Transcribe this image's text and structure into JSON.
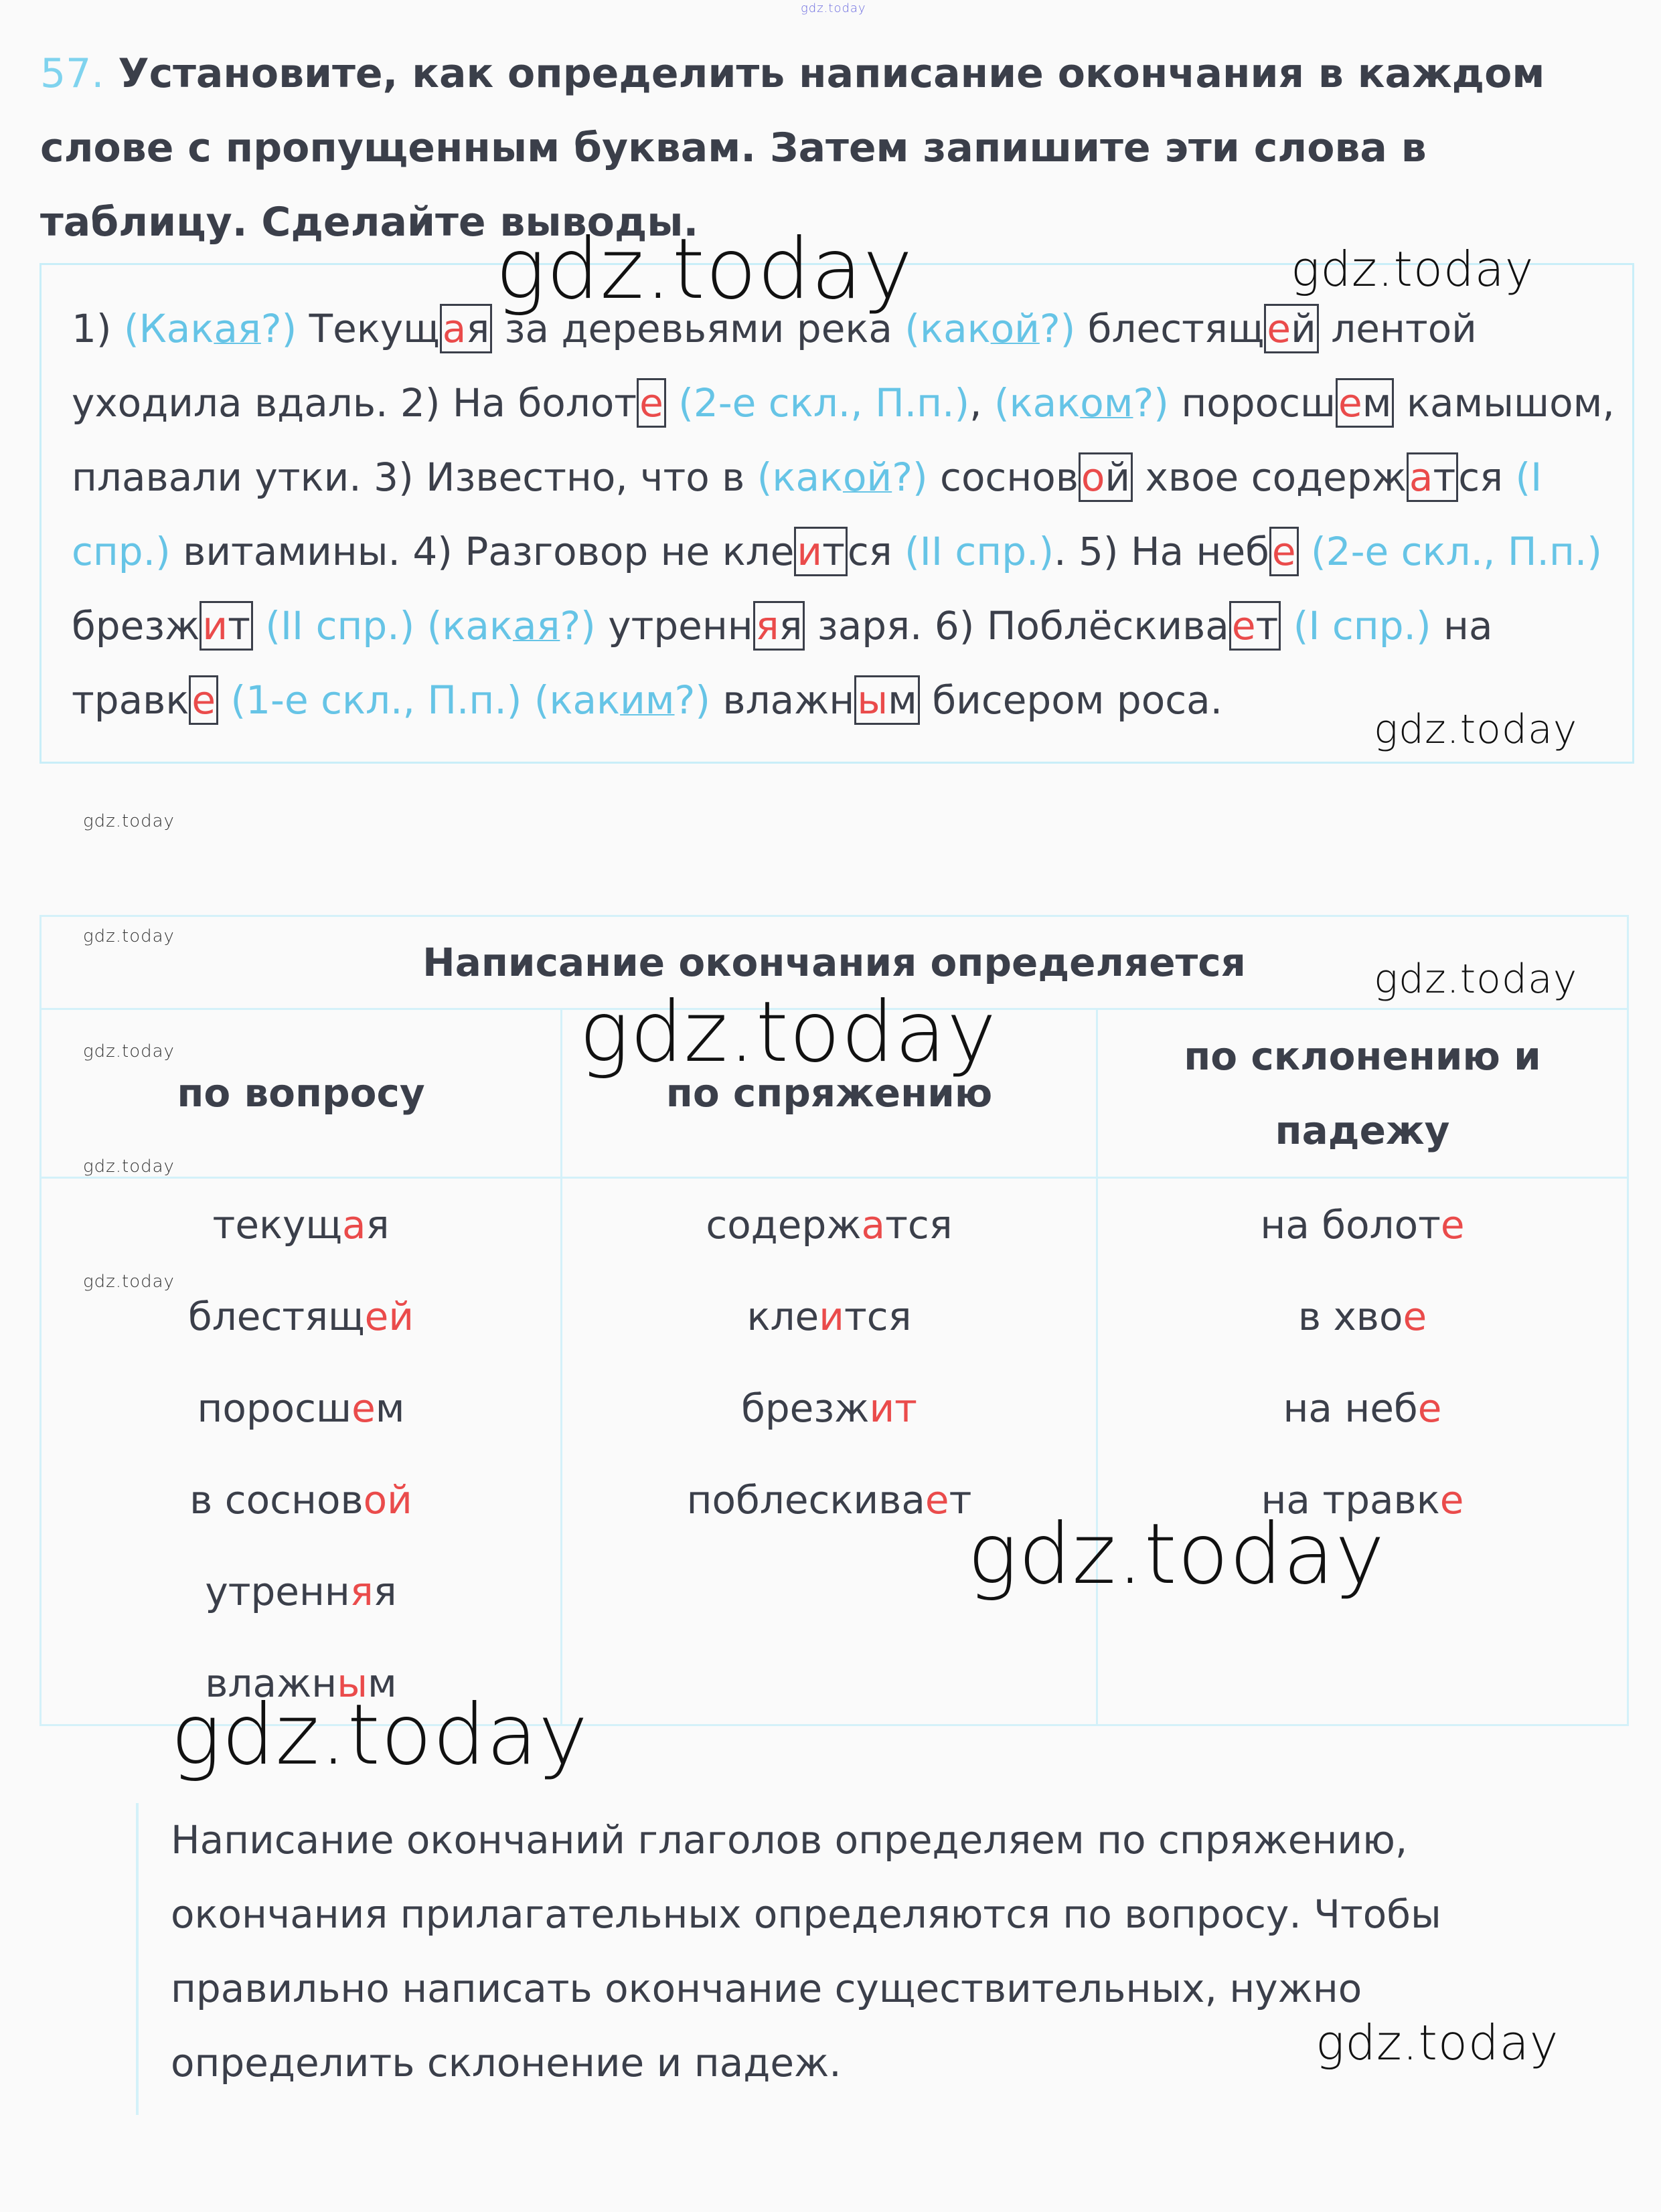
{
  "watermarks": {
    "top": "gdz.today",
    "big1": "gdz.today",
    "mid1": "gdz.today",
    "mid2": "gdz.today",
    "small1": "gdz.today",
    "small2": "gdz.today",
    "mid3": "gdz.today",
    "small3": "gdz.today",
    "small4": "gdz.today",
    "big2": "gdz.today",
    "big3": "gdz.today",
    "big4": "gdz.today",
    "small5": "gdz.today",
    "mid4": "gdz.today"
  },
  "colors": {
    "hint": "#66c4e6",
    "ending": "#ea4b4b",
    "text": "#3b3f4a",
    "border": "#d4f1f9"
  },
  "task": {
    "number": "57.",
    "text": "Установите, как определить написание окончания в каждом слове с пропущенным буквам. Затем запишите эти слова в таблицу. Сделайте выводы."
  },
  "paragraph": [
    {
      "t": "1) "
    },
    {
      "q": "(Как",
      "u": "ая",
      "q2": "?)"
    },
    {
      "t": " Текущ"
    },
    {
      "box": [
        {
          "r": "а"
        },
        {
          "t": "я"
        }
      ]
    },
    {
      "t": " за деревьями река "
    },
    {
      "q": "(как",
      "u": "ой",
      "q2": "?)"
    },
    {
      "t": " блестящ"
    },
    {
      "box": [
        {
          "r": "е"
        },
        {
          "t": "й"
        }
      ]
    },
    {
      "t": " лентой уходила вдаль. 2) На болот"
    },
    {
      "box": [
        {
          "r": "е"
        }
      ]
    },
    {
      "t": " "
    },
    {
      "q": "(2-е скл., П.п.)"
    },
    {
      "t": ", "
    },
    {
      "q": "(как",
      "u": "ом",
      "q2": "?)"
    },
    {
      "t": " поросш"
    },
    {
      "box": [
        {
          "r": "е"
        },
        {
          "t": "м"
        }
      ]
    },
    {
      "t": " камышом, плавали утки. 3) Известно, что в "
    },
    {
      "q": "(как",
      "u": "ой",
      "q2": "?)"
    },
    {
      "t": " соснов"
    },
    {
      "box": [
        {
          "r": "о"
        },
        {
          "t": "й"
        }
      ]
    },
    {
      "t": " хвое содерж"
    },
    {
      "box": [
        {
          "r": "а"
        },
        {
          "t": "т"
        }
      ]
    },
    {
      "t": "ся "
    },
    {
      "q": "(I спр.)"
    },
    {
      "t": " витамины. 4) Разговор не кле"
    },
    {
      "box": [
        {
          "r": "и"
        },
        {
          "t": "т"
        }
      ]
    },
    {
      "t": "ся "
    },
    {
      "q": "(II спр.)"
    },
    {
      "t": ". 5) На неб"
    },
    {
      "box": [
        {
          "r": "е"
        }
      ]
    },
    {
      "t": " "
    },
    {
      "q": "(2-е скл., П.п.)"
    },
    {
      "t": " брезж"
    },
    {
      "box": [
        {
          "r": "и"
        },
        {
          "t": "т"
        }
      ]
    },
    {
      "t": " "
    },
    {
      "q": "(II спр.)"
    },
    {
      "t": " "
    },
    {
      "q": "(как",
      "u": "ая",
      "q2": "?)"
    },
    {
      "t": " утренн"
    },
    {
      "box": [
        {
          "r": "я"
        },
        {
          "t": "я"
        }
      ]
    },
    {
      "t": " заря. 6) Поблёскива"
    },
    {
      "box": [
        {
          "r": "е"
        },
        {
          "t": "т"
        }
      ]
    },
    {
      "t": " "
    },
    {
      "q": "(I спр.)"
    },
    {
      "t": "  на травк"
    },
    {
      "box": [
        {
          "r": "е"
        }
      ]
    },
    {
      "t": " "
    },
    {
      "q": "(1-е скл., П.п.)"
    },
    {
      "t": "  "
    },
    {
      "q": "(как",
      "u": "им",
      "q2": "?)"
    },
    {
      "t": " влажн"
    },
    {
      "box": [
        {
          "r": "ы"
        },
        {
          "t": "м"
        }
      ]
    },
    {
      "t": " бисером роса."
    }
  ],
  "table": {
    "header": "Написание окончания определяется",
    "columns": [
      {
        "title": "по вопросу",
        "words": [
          {
            "s": "текущ",
            "e": "а",
            "r": "я"
          },
          {
            "s": "блестящ",
            "e": "ей",
            "r": ""
          },
          {
            "s": "поросш",
            "e": "е",
            "r": "м"
          },
          {
            "s": "в соснов",
            "e": "ой",
            "r": ""
          },
          {
            "s": "утренн",
            "e": "я",
            "r": "я"
          },
          {
            "s": "влажн",
            "e": "ы",
            "r": "м"
          }
        ]
      },
      {
        "title": "по спряжению",
        "words": [
          {
            "s": "содерж",
            "e": "а",
            "r": "тся"
          },
          {
            "s": "кле",
            "e": "и",
            "r": "тся"
          },
          {
            "s": "брезж",
            "e": "ит",
            "r": ""
          },
          {
            "s": "поблескива",
            "e": "е",
            "r": "т"
          }
        ]
      },
      {
        "title": "по склонению и падежу",
        "words": [
          {
            "s": "на болот",
            "e": "е",
            "r": ""
          },
          {
            "s": "в хво",
            "e": "е",
            "r": ""
          },
          {
            "s": "на неб",
            "e": "е",
            "r": ""
          },
          {
            "s": "на травк",
            "e": "е",
            "r": ""
          }
        ]
      }
    ]
  },
  "conclusion": "Написание окончаний глаголов определяем по спряжению, окончания прилагательных определяются по вопросу. Чтобы правильно написать окончание существительных, нужно определить склонение и падеж."
}
